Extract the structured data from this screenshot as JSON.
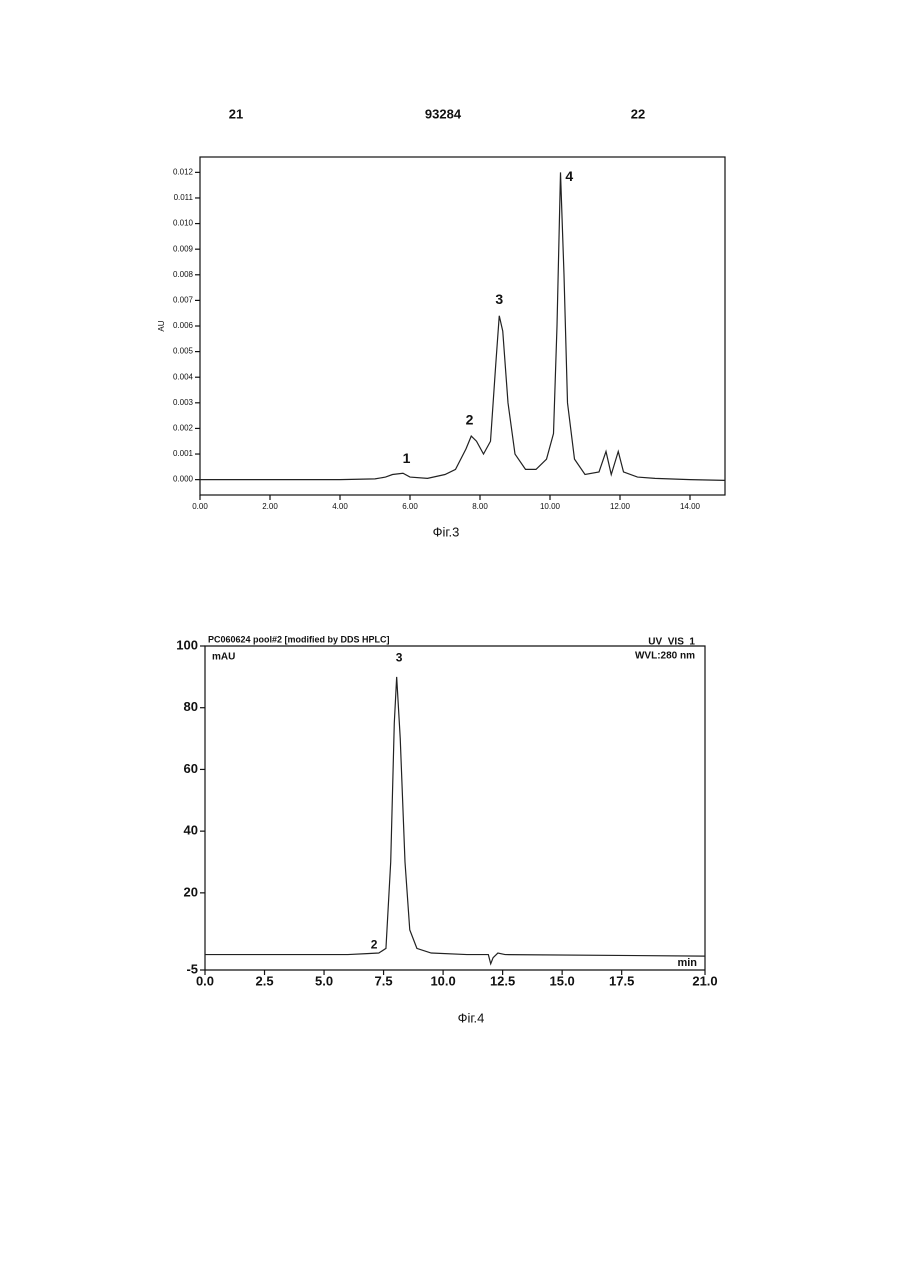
{
  "header": {
    "left": "21",
    "center": "93284",
    "right": "22"
  },
  "chart_data": [
    {
      "type": "line",
      "y_label": "AU",
      "caption": "Фіг.3",
      "annotations": [
        "1",
        "2",
        "3",
        "4"
      ],
      "x": [
        0,
        1,
        2,
        3,
        4,
        5,
        5.3,
        5.5,
        5.8,
        6.0,
        6.5,
        7.0,
        7.3,
        7.6,
        7.75,
        7.9,
        8.1,
        8.3,
        8.45,
        8.55,
        8.65,
        8.8,
        9.0,
        9.3,
        9.6,
        9.9,
        10.1,
        10.2,
        10.3,
        10.4,
        10.5,
        10.7,
        11.0,
        11.4,
        11.6,
        11.75,
        11.95,
        12.1,
        12.5,
        13,
        14,
        15
      ],
      "values": [
        0,
        0,
        0,
        0,
        0,
        3e-05,
        0.0001,
        0.0002,
        0.00025,
        0.0001,
        5e-05,
        0.0002,
        0.0004,
        0.0012,
        0.0017,
        0.0015,
        0.001,
        0.0015,
        0.0045,
        0.0064,
        0.0058,
        0.003,
        0.001,
        0.0004,
        0.0004,
        0.0008,
        0.0018,
        0.006,
        0.012,
        0.008,
        0.003,
        0.0008,
        0.0002,
        0.0003,
        0.0011,
        0.0002,
        0.0011,
        0.0003,
        0.0001,
        5e-05,
        0,
        -3e-05
      ],
      "color": "#222222",
      "xlim": [
        0,
        15
      ],
      "ylim": [
        -0.0006,
        0.0126
      ],
      "xticks": [
        {
          "value": 0,
          "label": "0.00"
        },
        {
          "value": 2,
          "label": "2.00"
        },
        {
          "value": 4,
          "label": "4.00"
        },
        {
          "value": 6,
          "label": "6.00"
        },
        {
          "value": 8,
          "label": "8.00"
        },
        {
          "value": 10,
          "label": "10.00"
        },
        {
          "value": 12,
          "label": "12.00"
        },
        {
          "value": 14,
          "label": "14.00"
        }
      ],
      "yticks": [
        {
          "value": 0,
          "label": "0.000"
        },
        {
          "value": 0.001,
          "label": "0.001"
        },
        {
          "value": 0.002,
          "label": "0.002"
        },
        {
          "value": 0.003,
          "label": "0.003"
        },
        {
          "value": 0.004,
          "label": "0.004"
        },
        {
          "value": 0.005,
          "label": "0.005"
        },
        {
          "value": 0.006,
          "label": "0.006"
        },
        {
          "value": 0.007,
          "label": "0.007"
        },
        {
          "value": 0.008,
          "label": "0.008"
        },
        {
          "value": 0.009,
          "label": "0.009"
        },
        {
          "value": 0.01,
          "label": "0.010"
        },
        {
          "value": 0.011,
          "label": "0.011"
        },
        {
          "value": 0.012,
          "label": "0.012"
        }
      ]
    },
    {
      "type": "line",
      "title": "PC060624 pool#2 [modified by DDS HPLC]",
      "channel": "UV_VIS_1",
      "y_label": "mAU",
      "wavelength": "WVL:280 nm",
      "x_label": "min",
      "caption": "Фіг.4",
      "annotations": [
        "2",
        "3"
      ],
      "x": [
        0,
        6,
        6.8,
        7.3,
        7.6,
        7.8,
        7.95,
        8.05,
        8.2,
        8.4,
        8.6,
        8.9,
        9.5,
        11,
        11.9,
        12.0,
        12.1,
        12.3,
        12.6,
        21
      ],
      "values": [
        0,
        0,
        0.3,
        0.5,
        2,
        30,
        75,
        90,
        70,
        30,
        8,
        2,
        0.5,
        0,
        0,
        -3,
        -1,
        0.5,
        0,
        -0.5
      ],
      "color": "#222222",
      "xlim": [
        0,
        21
      ],
      "ylim": [
        -5,
        100
      ],
      "xticks": [
        {
          "value": 0,
          "label": "0.0"
        },
        2.5,
        {
          "value": 5,
          "label": "5.0"
        },
        7.5,
        {
          "value": 10,
          "label": "10.0"
        },
        12.5,
        {
          "value": 15,
          "label": "15.0"
        },
        17.5,
        {
          "value": 21,
          "label": "21.0"
        }
      ],
      "yticks": [
        -5,
        20,
        40,
        60,
        80,
        100
      ]
    }
  ]
}
